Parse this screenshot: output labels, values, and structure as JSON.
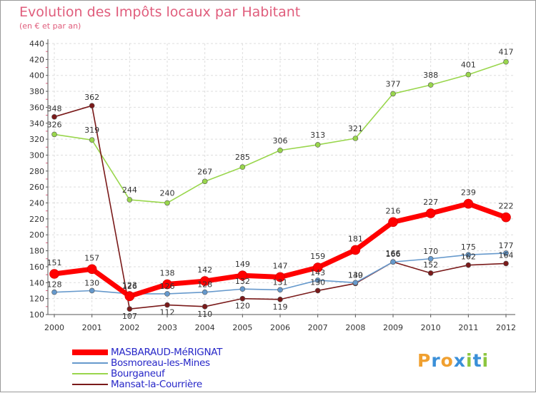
{
  "header": {
    "title": "Evolution des Impôts locaux par Habitant",
    "subtitle": "(en € et par an)"
  },
  "brand": {
    "letters": [
      "P",
      "r",
      "o",
      "x",
      "i",
      "t",
      "i"
    ],
    "colors": [
      "#f0a030",
      "#3a8fd8",
      "#f0a030",
      "#3a8fd8",
      "#8cc63f",
      "#3a8fd8",
      "#8cc63f"
    ]
  },
  "chart_data": {
    "type": "line",
    "x": [
      "2000",
      "2001",
      "2002",
      "2003",
      "2004",
      "2005",
      "2006",
      "2007",
      "2008",
      "2009",
      "2010",
      "2011",
      "2012"
    ],
    "ylim": [
      100,
      440
    ],
    "yticks": [
      "100",
      "120",
      "140",
      "160",
      "180",
      "200",
      "220",
      "240",
      "260",
      "280",
      "300",
      "320",
      "340",
      "360",
      "380",
      "400",
      "420",
      "440"
    ],
    "grid": true,
    "legend_position": "bottom-left",
    "series": [
      {
        "name": "MASBARAUD-MéRIGNAT",
        "color": "#ff0000",
        "values": [
          151,
          157,
          123,
          138,
          142,
          149,
          147,
          159,
          181,
          216,
          227,
          239,
          222
        ],
        "labels": [
          "151",
          "157",
          "123",
          "138",
          "142",
          "149",
          "147",
          "159",
          "181",
          "216",
          "227",
          "239",
          "222"
        ]
      },
      {
        "name": "Bosmoreau-les-Mines",
        "color": "#6699cc",
        "values": [
          128,
          130,
          126,
          126,
          128,
          132,
          131,
          143,
          140,
          166,
          170,
          175,
          177
        ],
        "labels": [
          "128",
          "130",
          "126",
          "126",
          "128",
          "132",
          "131",
          "143",
          "140",
          "166",
          "170",
          "175",
          "177"
        ]
      },
      {
        "name": "Bourganeuf",
        "color": "#99d64c",
        "values": [
          326,
          319,
          244,
          240,
          267,
          285,
          306,
          313,
          321,
          377,
          388,
          401,
          417
        ],
        "labels": [
          "326",
          "319",
          "244",
          "240",
          "267",
          "285",
          "306",
          "313",
          "321",
          "377",
          "388",
          "401",
          "417"
        ]
      },
      {
        "name": "Mansat-la-Courrière",
        "color": "#7a1a1a",
        "values": [
          348,
          362,
          107,
          112,
          110,
          120,
          119,
          130,
          139,
          166,
          152,
          162,
          164
        ],
        "labels": [
          "348",
          "362",
          "107",
          "112",
          "110",
          "120",
          "119",
          "130",
          "139",
          "166",
          "152",
          "162",
          "164"
        ]
      }
    ]
  }
}
